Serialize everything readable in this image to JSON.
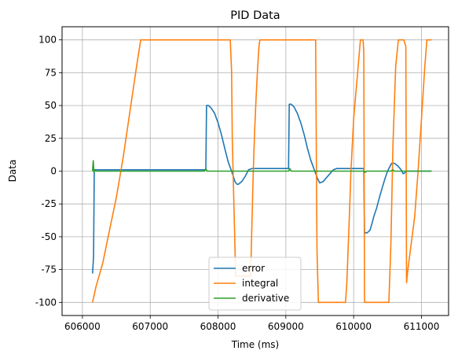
{
  "chart_data": {
    "type": "line",
    "title": "PID Data",
    "xlabel": "Time (ms)",
    "ylabel": "Data",
    "xlim": [
      605700,
      611400
    ],
    "ylim": [
      -110,
      110
    ],
    "xticks": [
      606000,
      607000,
      608000,
      609000,
      610000,
      611000
    ],
    "yticks": [
      -100,
      -75,
      -50,
      -25,
      0,
      25,
      50,
      75,
      100
    ],
    "grid": true,
    "legend": "lower-center",
    "series": [
      {
        "name": "error",
        "color": "#1f77b4",
        "x": [
          606150,
          606165,
          606175,
          606200,
          607800,
          607820,
          607830,
          607860,
          607900,
          607950,
          608000,
          608050,
          608100,
          608150,
          608200,
          608250,
          608280,
          608300,
          608350,
          608400,
          608450,
          608500,
          608550,
          609000,
          609040,
          609050,
          609080,
          609120,
          609170,
          609220,
          609270,
          609320,
          609370,
          609420,
          609470,
          609500,
          609550,
          609600,
          609650,
          609700,
          609750,
          610150,
          610160,
          610200,
          610240,
          610270,
          610300,
          610340,
          610380,
          610420,
          610460,
          610500,
          610540,
          610560,
          610600,
          610650,
          610700,
          610730,
          610760,
          610790,
          611150
        ],
        "y": [
          -78,
          -65,
          1,
          1,
          1,
          1,
          50,
          50,
          48,
          44,
          37,
          28,
          17,
          7,
          0,
          -8,
          -10,
          -10,
          -8,
          -4,
          1,
          2,
          2,
          2,
          2,
          51,
          51,
          49,
          44,
          37,
          28,
          17,
          8,
          1,
          -6,
          -9,
          -8,
          -5,
          -2,
          1,
          2,
          2,
          -47,
          -47,
          -45,
          -40,
          -34,
          -28,
          -20,
          -13,
          -6,
          0,
          4,
          6,
          6,
          4,
          1,
          -2,
          -1,
          0,
          0
        ]
      },
      {
        "name": "integral",
        "color": "#ff7f0e",
        "x": [
          606150,
          606200,
          606300,
          606400,
          606500,
          606600,
          606700,
          606800,
          606860,
          606880,
          608180,
          608200,
          608210,
          608260,
          608480,
          608520,
          608540,
          608560,
          608580,
          608600,
          608610,
          608620,
          609440,
          609450,
          609460,
          609480,
          609880,
          609900,
          609940,
          609960,
          610000,
          610100,
          610140,
          610150,
          610160,
          610520,
          610550,
          610580,
          610620,
          610660,
          610700,
          610740,
          610770,
          610780,
          610800,
          610850,
          610900,
          610950,
          611000,
          611050,
          611080,
          611150
        ],
        "y": [
          -100,
          -88,
          -70,
          -45,
          -20,
          10,
          45,
          80,
          100,
          100,
          100,
          76,
          24,
          -80,
          -80,
          0,
          30,
          55,
          75,
          92,
          98,
          100,
          100,
          10,
          -60,
          -100,
          -100,
          -85,
          -30,
          0,
          40,
          100,
          100,
          90,
          -100,
          -100,
          -55,
          20,
          80,
          100,
          100,
          100,
          95,
          -85,
          -75,
          -55,
          -35,
          0,
          40,
          80,
          100,
          100
        ]
      },
      {
        "name": "derivative",
        "color": "#2ca02c",
        "x": [
          606150,
          606160,
          606170,
          606180,
          606200,
          607800,
          607820,
          607840,
          607860,
          609040,
          609060,
          609080,
          610150,
          610170,
          610190,
          610550,
          610580,
          610600,
          611150
        ],
        "y": [
          0,
          8,
          -1,
          1,
          0,
          0,
          2,
          0,
          0,
          0,
          2,
          0,
          0,
          -1,
          0,
          0,
          1,
          0,
          0
        ]
      }
    ]
  }
}
